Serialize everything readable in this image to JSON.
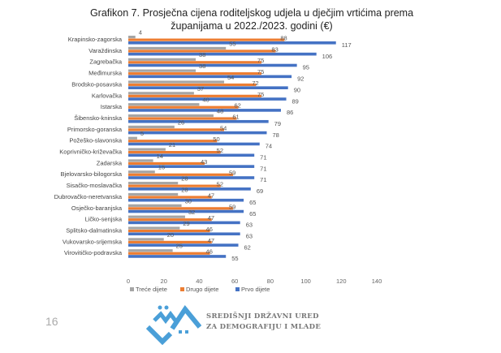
{
  "chart_data": {
    "type": "bar",
    "orientation": "horizontal",
    "title_line1": "Grafikon 7. Prosječna cijena roditeljskog udjela u dječjim vrtićima prema",
    "title_line2": "županijama u 2022./2023. godini (€)",
    "categories": [
      "Krapinsko-zagorska",
      "Varaždinska",
      "Zagrebačka",
      "Međimurska",
      "Brodsko-posavska",
      "Karlovačka",
      "Istarska",
      "Šibensko-kninska",
      "Primorsko-goranska",
      "Požeško-slavonska",
      "Koprivničko-križevačka",
      "Zadarska",
      "Bjelovarsko-bilogorska",
      "Sisačko-moslavačka",
      "Dubrovačko-neretvanska",
      "Osječko-baranjska",
      "Ličko-senjska",
      "Splitsko-dalmatinska",
      "Vukovarsko-srijemska",
      "Virovitičko-podravska"
    ],
    "series": [
      {
        "name": "Treće dijete",
        "color": "#a5a5a5",
        "values": [
          4,
          55,
          38,
          38,
          54,
          37,
          40,
          48,
          26,
          5,
          21,
          14,
          15,
          28,
          28,
          30,
          32,
          29,
          20,
          25
        ]
      },
      {
        "name": "Drugo dijete",
        "color": "#ed7d31",
        "values": [
          88,
          83,
          75,
          75,
          72,
          75,
          62,
          61,
          54,
          50,
          52,
          43,
          59,
          52,
          47,
          59,
          47,
          46,
          47,
          46
        ]
      },
      {
        "name": "Prvo dijete",
        "color": "#4472c4",
        "values": [
          117,
          106,
          95,
          92,
          90,
          89,
          86,
          79,
          78,
          74,
          71,
          71,
          71,
          69,
          65,
          65,
          63,
          63,
          62,
          55
        ]
      }
    ],
    "xlim": [
      0,
      140
    ],
    "xticks": [
      "0",
      "20",
      "40",
      "60",
      "80",
      "100",
      "120",
      "140"
    ],
    "legend_position": "bottom"
  },
  "page_number": "16",
  "logo": {
    "line1": "SREDIŠNJI DRŽAVNI URED",
    "line2": "ZA DEMOGRAFIJU I MLADE"
  }
}
